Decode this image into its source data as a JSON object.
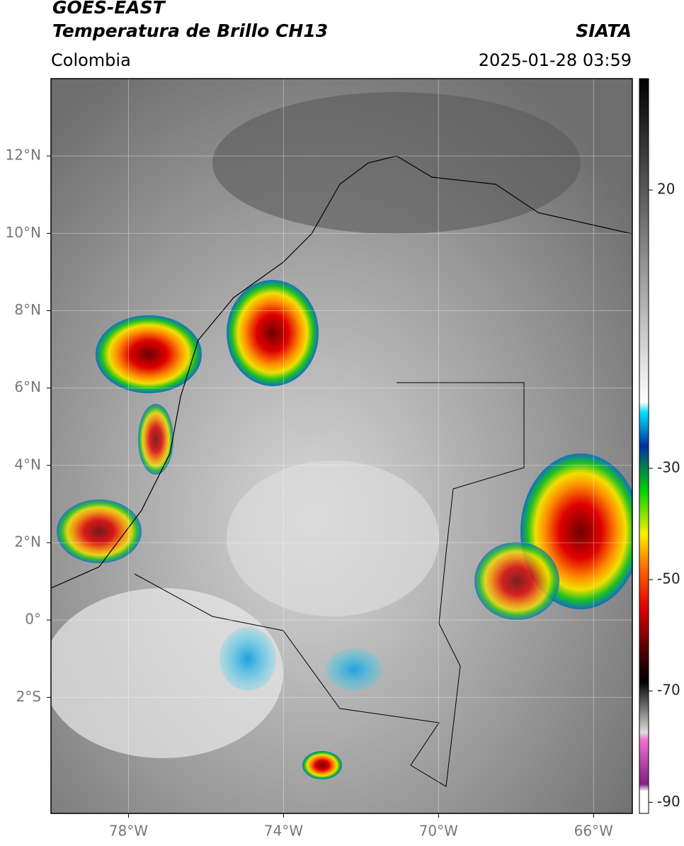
{
  "header": {
    "source": "GOES-EAST",
    "title": "Temperatura de Brillo CH13",
    "org": "SIATA",
    "region": "Colombia",
    "timestamp": "2025-01-28 03:59"
  },
  "map": {
    "xlim": [
      -80,
      -65
    ],
    "ylim": [
      -5,
      14
    ],
    "xticks": [
      {
        "value": -78,
        "label": "78°W"
      },
      {
        "value": -74,
        "label": "74°W"
      },
      {
        "value": -70,
        "label": "70°W"
      },
      {
        "value": -66,
        "label": "66°W"
      }
    ],
    "yticks": [
      {
        "value": 12,
        "label": "12°N"
      },
      {
        "value": 10,
        "label": "10°N"
      },
      {
        "value": 8,
        "label": "8°N"
      },
      {
        "value": 6,
        "label": "6°N"
      },
      {
        "value": 4,
        "label": "4°N"
      },
      {
        "value": 2,
        "label": "2°N"
      },
      {
        "value": 0,
        "label": "0°"
      },
      {
        "value": -2,
        "label": "2°S"
      }
    ],
    "grid": true
  },
  "colorbar": {
    "lim": [
      -92,
      40
    ],
    "ticks": [
      20,
      -30,
      -50,
      -70,
      -90
    ]
  }
}
